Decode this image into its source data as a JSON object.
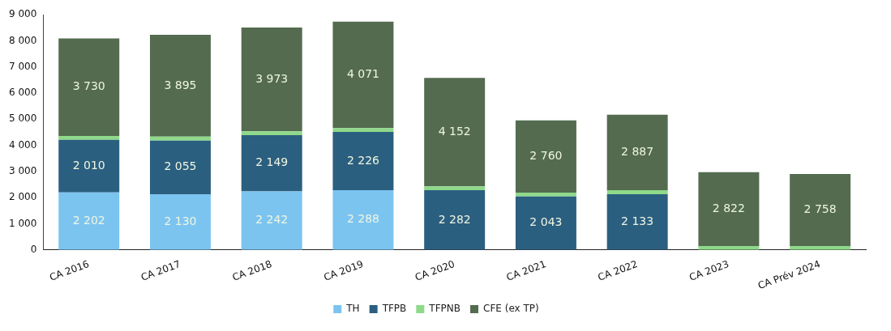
{
  "chart_data": {
    "type": "bar",
    "stacked": true,
    "categories": [
      "CA 2016",
      "CA 2017",
      "CA 2018",
      "CA 2019",
      "CA 2020",
      "CA 2021",
      "CA 2022",
      "CA 2023",
      "CA Prév 2024"
    ],
    "series": [
      {
        "name": "TH",
        "color": "#7cc4f0",
        "values": [
          2202,
          2130,
          2242,
          2288,
          null,
          null,
          null,
          null,
          null
        ],
        "value_labels": [
          "2 202",
          "2 130",
          "2 242",
          "2 288",
          null,
          null,
          null,
          null,
          null
        ]
      },
      {
        "name": "TFPB",
        "color": "#2b5f80",
        "values": [
          2010,
          2055,
          2149,
          2226,
          2282,
          2043,
          2133,
          null,
          null
        ],
        "value_labels": [
          "2 010",
          "2 055",
          "2 149",
          "2 226",
          "2 282",
          "2 043",
          "2 133",
          null,
          null
        ]
      },
      {
        "name": "TFPNB",
        "color": "#8ed98a",
        "values": [
          150,
          150,
          150,
          150,
          150,
          150,
          150,
          150,
          150
        ]
      },
      {
        "name": "CFE (ex TP)",
        "color": "#546b50",
        "values": [
          3730,
          3895,
          3973,
          4071,
          4152,
          2760,
          2887,
          2822,
          2758
        ],
        "value_labels": [
          "3 730",
          "3 895",
          "3 973",
          "4 071",
          "4 152",
          "2 760",
          "2 887",
          "2 822",
          "2 758"
        ]
      }
    ],
    "ylim": [
      0,
      9000
    ],
    "yticks": [
      {
        "value": 0,
        "label": "0"
      },
      {
        "value": 1000,
        "label": "1 000"
      },
      {
        "value": 2000,
        "label": "2 000"
      },
      {
        "value": 3000,
        "label": "3 000"
      },
      {
        "value": 4000,
        "label": "4 000"
      },
      {
        "value": 5000,
        "label": "5 000"
      },
      {
        "value": 6000,
        "label": "6 000"
      },
      {
        "value": 7000,
        "label": "7 000"
      },
      {
        "value": 8000,
        "label": "8 000"
      },
      {
        "value": 9000,
        "label": "9 000"
      }
    ],
    "grid": false,
    "legend": "bottom"
  }
}
